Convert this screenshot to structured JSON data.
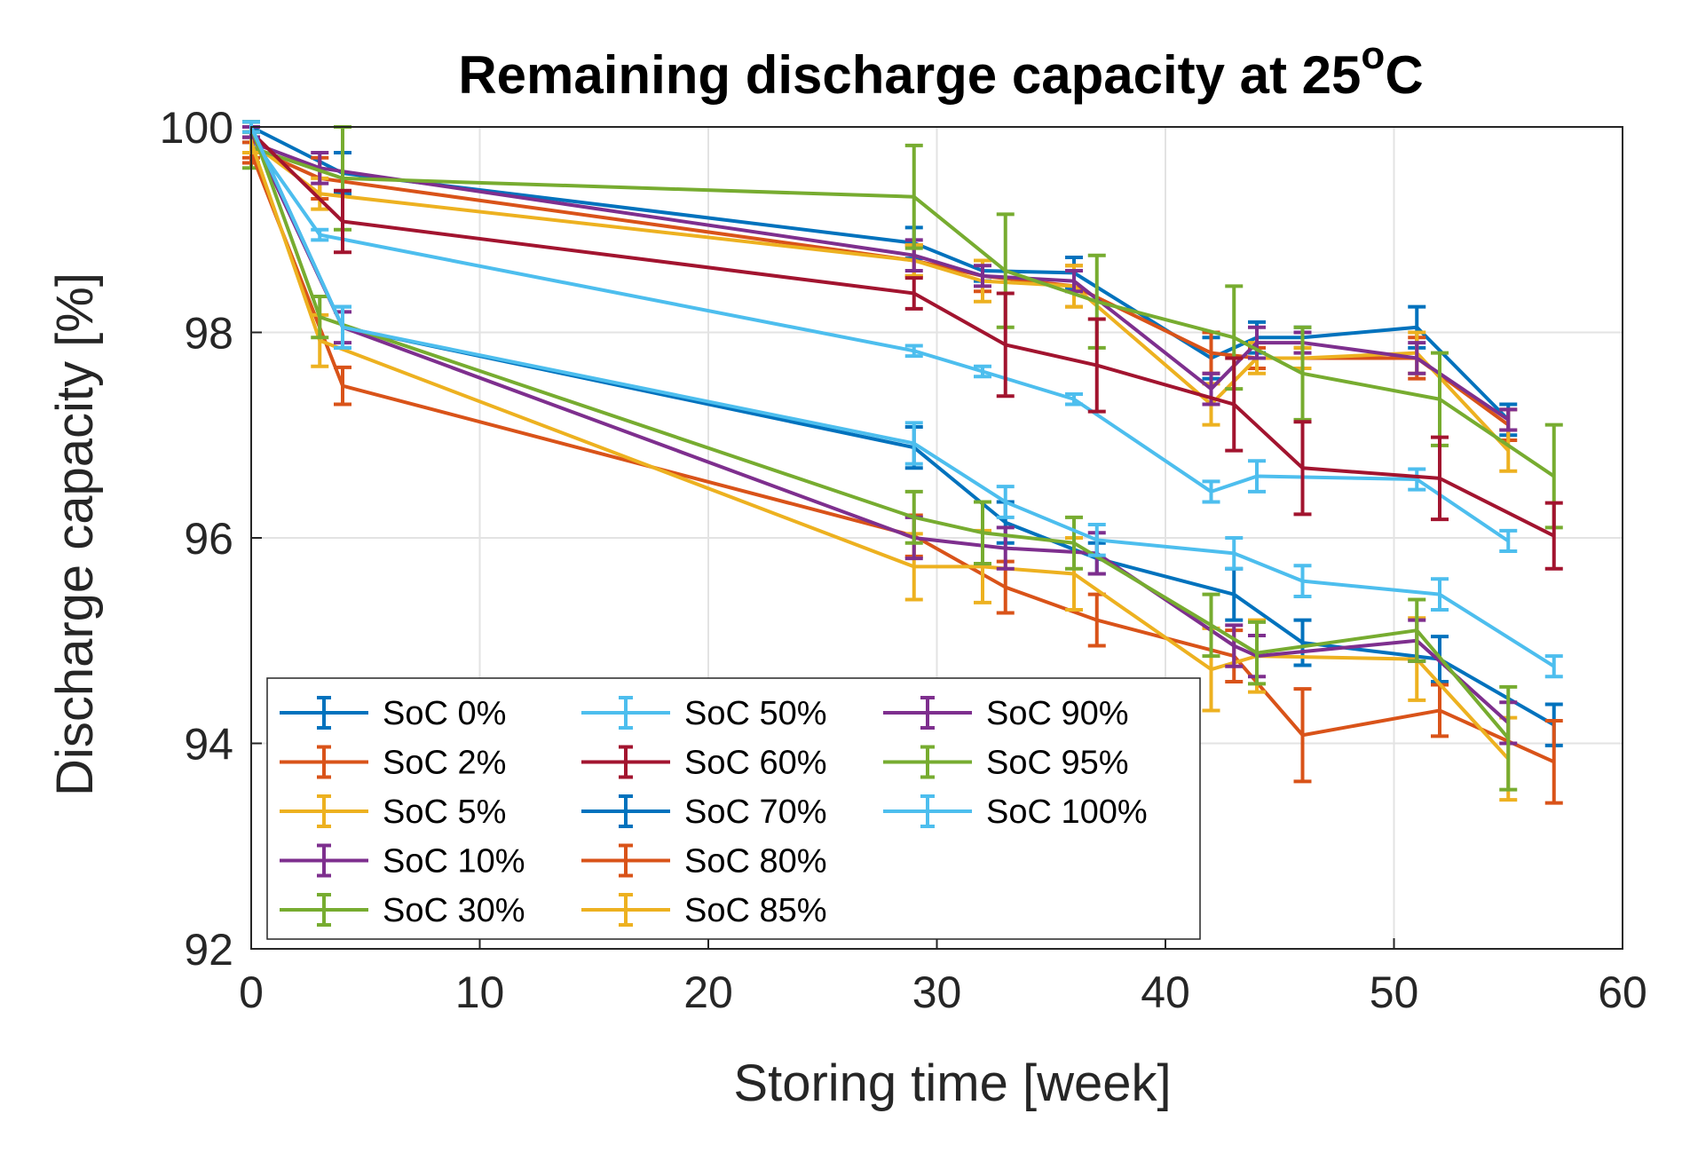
{
  "chart_data": {
    "type": "line",
    "title": "Remaining discharge capacity at 25",
    "title_superscript": "o",
    "title_suffix": "C",
    "xlabel": "Storing time [week]",
    "ylabel": "Discharge capacity [%]",
    "xlim": [
      0,
      60
    ],
    "ylim": [
      92,
      100
    ],
    "xticks": [
      0,
      10,
      20,
      30,
      40,
      50,
      60
    ],
    "yticks": [
      92,
      94,
      96,
      98,
      100
    ],
    "grid": true,
    "legend_position": "bottom-left",
    "series": [
      {
        "name": "SoC 0%",
        "color": "#0072BD",
        "points": [
          [
            0,
            100,
            0.05
          ],
          [
            4,
            99.55,
            0.2
          ],
          [
            29,
            98.87,
            0.15
          ],
          [
            32,
            98.6,
            0.1
          ],
          [
            36,
            98.58,
            0.15
          ],
          [
            42,
            97.75,
            0.2
          ],
          [
            44,
            97.95,
            0.15
          ],
          [
            46,
            97.95,
            0.1
          ],
          [
            51,
            98.05,
            0.2
          ],
          [
            55,
            97.15,
            0.15
          ]
        ]
      },
      {
        "name": "SoC 2%",
        "color": "#D95319",
        "points": [
          [
            0,
            99.8,
            0.1
          ],
          [
            3,
            99.5,
            0.2
          ],
          [
            29,
            98.7,
            0.15
          ],
          [
            32,
            98.55,
            0.15
          ],
          [
            36,
            98.45,
            0.2
          ],
          [
            42,
            97.8,
            0.2
          ],
          [
            44,
            97.75,
            0.1
          ],
          [
            46,
            97.75,
            0.1
          ],
          [
            51,
            97.75,
            0.2
          ],
          [
            55,
            97.1,
            0.15
          ]
        ]
      },
      {
        "name": "SoC 5%",
        "color": "#EDB120",
        "points": [
          [
            0,
            99.85,
            0.1
          ],
          [
            3,
            99.35,
            0.15
          ],
          [
            29,
            98.7,
            0.15
          ],
          [
            32,
            98.5,
            0.2
          ],
          [
            36,
            98.45,
            0.2
          ],
          [
            42,
            97.3,
            0.2
          ],
          [
            44,
            97.75,
            0.15
          ],
          [
            46,
            97.75,
            0.1
          ],
          [
            51,
            97.8,
            0.2
          ],
          [
            55,
            96.85,
            0.2
          ]
        ]
      },
      {
        "name": "SoC 10%",
        "color": "#7E2F8E",
        "points": [
          [
            0,
            99.85,
            0.1
          ],
          [
            3,
            99.6,
            0.15
          ],
          [
            29,
            98.75,
            0.15
          ],
          [
            32,
            98.55,
            0.1
          ],
          [
            36,
            98.5,
            0.1
          ],
          [
            42,
            97.45,
            0.15
          ],
          [
            44,
            97.9,
            0.15
          ],
          [
            46,
            97.9,
            0.1
          ],
          [
            51,
            97.75,
            0.15
          ],
          [
            55,
            97.15,
            0.1
          ]
        ]
      },
      {
        "name": "SoC 30%",
        "color": "#77AC30",
        "points": [
          [
            0,
            99.8,
            0.2
          ],
          [
            4,
            99.5,
            0.5
          ],
          [
            29,
            99.32,
            0.5
          ],
          [
            33,
            98.6,
            0.55
          ],
          [
            37,
            98.3,
            0.45
          ],
          [
            43,
            97.95,
            0.5
          ],
          [
            46,
            97.6,
            0.45
          ],
          [
            52,
            97.35,
            0.45
          ],
          [
            57,
            96.6,
            0.5
          ]
        ]
      },
      {
        "name": "SoC 50%",
        "color": "#4DBEEE",
        "points": [
          [
            0,
            99.9,
            0.05
          ],
          [
            3,
            98.95,
            0.05
          ],
          [
            29,
            97.82,
            0.05
          ],
          [
            32,
            97.62,
            0.05
          ],
          [
            36,
            97.35,
            0.05
          ],
          [
            42,
            96.45,
            0.1
          ],
          [
            44,
            96.6,
            0.15
          ],
          [
            51,
            96.57,
            0.1
          ],
          [
            55,
            95.97,
            0.1
          ]
        ]
      },
      {
        "name": "SoC 60%",
        "color": "#A2142F",
        "points": [
          [
            0,
            99.95,
            0.05
          ],
          [
            4,
            99.08,
            0.3
          ],
          [
            29,
            98.38,
            0.15
          ],
          [
            33,
            97.88,
            0.5
          ],
          [
            37,
            97.68,
            0.45
          ],
          [
            43,
            97.3,
            0.45
          ],
          [
            46,
            96.68,
            0.45
          ],
          [
            52,
            96.58,
            0.4
          ],
          [
            57,
            96.02,
            0.32
          ]
        ]
      },
      {
        "name": "SoC 70%",
        "color": "#0072BD",
        "points": [
          [
            0,
            100,
            0.05
          ],
          [
            4,
            98.05,
            0.2
          ],
          [
            29,
            96.88,
            0.2
          ],
          [
            33,
            96.15,
            0.2
          ],
          [
            37,
            95.8,
            0.15
          ],
          [
            43,
            95.45,
            0.25
          ],
          [
            46,
            94.98,
            0.22
          ],
          [
            52,
            94.82,
            0.22
          ],
          [
            57,
            94.18,
            0.2
          ]
        ]
      },
      {
        "name": "SoC 80%",
        "color": "#D95319",
        "points": [
          [
            0,
            99.75,
            0.1
          ],
          [
            4,
            97.48,
            0.18
          ],
          [
            29,
            96.02,
            0.2
          ],
          [
            33,
            95.52,
            0.25
          ],
          [
            37,
            95.2,
            0.25
          ],
          [
            43,
            94.85,
            0.25
          ],
          [
            46,
            94.08,
            0.45
          ],
          [
            52,
            94.32,
            0.25
          ],
          [
            57,
            93.82,
            0.4
          ]
        ]
      },
      {
        "name": "SoC 85%",
        "color": "#EDB120",
        "points": [
          [
            0,
            99.85,
            0.1
          ],
          [
            3,
            97.92,
            0.25
          ],
          [
            29,
            95.72,
            0.32
          ],
          [
            32,
            95.72,
            0.35
          ],
          [
            36,
            95.65,
            0.35
          ],
          [
            42,
            94.72,
            0.4
          ],
          [
            44,
            94.85,
            0.35
          ],
          [
            51,
            94.82,
            0.4
          ],
          [
            55,
            93.85,
            0.4
          ]
        ]
      },
      {
        "name": "SoC 90%",
        "color": "#7E2F8E",
        "points": [
          [
            0,
            99.95,
            0.05
          ],
          [
            4,
            98.05,
            0.15
          ],
          [
            29,
            96.0,
            0.2
          ],
          [
            33,
            95.9,
            0.2
          ],
          [
            37,
            95.85,
            0.2
          ],
          [
            43,
            94.95,
            0.2
          ],
          [
            44,
            94.85,
            0.2
          ],
          [
            51,
            95.0,
            0.2
          ],
          [
            55,
            94.2,
            0.2
          ]
        ]
      },
      {
        "name": "SoC 95%",
        "color": "#77AC30",
        "points": [
          [
            0,
            100,
            0.05
          ],
          [
            3,
            98.15,
            0.2
          ],
          [
            29,
            96.2,
            0.25
          ],
          [
            32,
            96.05,
            0.3
          ],
          [
            36,
            95.95,
            0.25
          ],
          [
            42,
            95.15,
            0.3
          ],
          [
            44,
            94.88,
            0.3
          ],
          [
            51,
            95.1,
            0.3
          ],
          [
            55,
            94.05,
            0.5
          ]
        ]
      },
      {
        "name": "SoC 100%",
        "color": "#4DBEEE",
        "points": [
          [
            0,
            100,
            0.05
          ],
          [
            4,
            98.05,
            0.2
          ],
          [
            29,
            96.92,
            0.2
          ],
          [
            33,
            96.35,
            0.15
          ],
          [
            37,
            95.98,
            0.15
          ],
          [
            43,
            95.85,
            0.15
          ],
          [
            46,
            95.58,
            0.15
          ],
          [
            52,
            95.45,
            0.15
          ],
          [
            57,
            94.75,
            0.1
          ]
        ]
      }
    ]
  }
}
